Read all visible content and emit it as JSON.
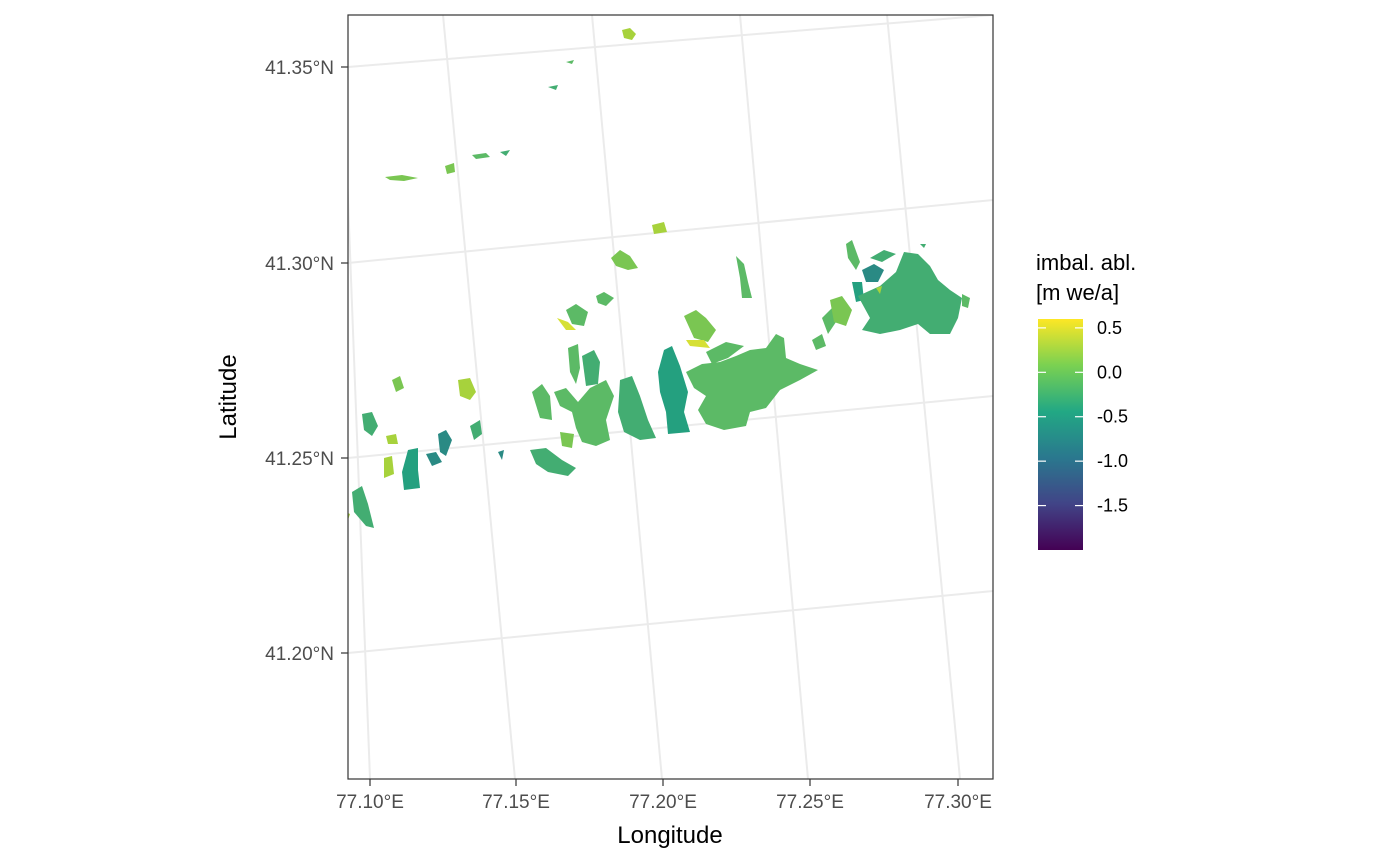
{
  "map": {
    "xlabel": "Longitude",
    "ylabel": "Latitude",
    "x_ticks": [
      "77.10°E",
      "77.15°E",
      "77.20°E",
      "77.25°E",
      "77.30°E"
    ],
    "y_ticks": [
      "41.35°N",
      "41.30°N",
      "41.25°N",
      "41.20°N"
    ],
    "grid": true,
    "projection": "rotated graticule (projected CRS)"
  },
  "legend": {
    "title_line1": "imbal. abl.",
    "title_line2": "[m we/a]",
    "range": [
      -2.0,
      0.6
    ],
    "labels": [
      "0.5",
      "0.0",
      "-0.5",
      "-1.0",
      "-1.5"
    ],
    "label_values": [
      0.5,
      0.0,
      -0.5,
      -1.0,
      -1.5
    ],
    "palette": "viridis",
    "colors": [
      "#440154",
      "#414487",
      "#2a788e",
      "#22a884",
      "#7ad151",
      "#fde725"
    ]
  },
  "glacier_colors": {
    "dark_teal": "#2a8a84",
    "teal": "#24a07f",
    "green_teal": "#43ad72",
    "green": "#5cba66",
    "light_green": "#7ac652",
    "yellow_green": "#a7d23c",
    "yellow": "#d6e035"
  }
}
